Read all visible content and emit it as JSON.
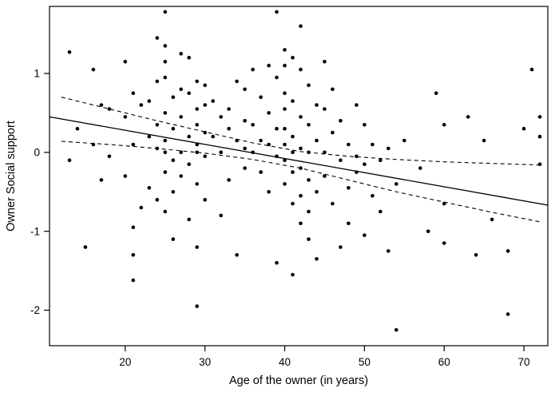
{
  "figure": {
    "background": "#ffffff",
    "foreground": "#000000"
  },
  "chart_data": {
    "type": "scatter",
    "title": "",
    "xlabel": "Age of the owner (in years)",
    "ylabel": "Owner Social support",
    "xlim": [
      10.5,
      73
    ],
    "ylim": [
      -2.45,
      1.85
    ],
    "xticks": [
      20,
      30,
      40,
      50,
      60,
      70
    ],
    "yticks": [
      -2,
      -1,
      0,
      1
    ],
    "grid": false,
    "legend": "none",
    "point_color": "#000000",
    "line_color": "#000000",
    "points": [
      [
        13,
        1.27
      ],
      [
        16,
        1.05
      ],
      [
        17,
        0.6
      ],
      [
        14,
        0.3
      ],
      [
        16,
        0.1
      ],
      [
        13,
        -0.1
      ],
      [
        17,
        -0.35
      ],
      [
        15,
        -1.2
      ],
      [
        18,
        0.55
      ],
      [
        18,
        -0.05
      ],
      [
        20,
        1.15
      ],
      [
        21,
        0.75
      ],
      [
        20,
        0.45
      ],
      [
        22,
        0.6
      ],
      [
        21,
        0.1
      ],
      [
        23,
        0.2
      ],
      [
        20,
        -0.3
      ],
      [
        22,
        -0.7
      ],
      [
        21,
        -0.95
      ],
      [
        21,
        -1.3
      ],
      [
        21,
        -1.62
      ],
      [
        24,
        1.45
      ],
      [
        24,
        0.9
      ],
      [
        23,
        0.65
      ],
      [
        24,
        0.35
      ],
      [
        24,
        0.05
      ],
      [
        23,
        -0.45
      ],
      [
        24,
        -0.6
      ],
      [
        25,
        1.78
      ],
      [
        25,
        1.35
      ],
      [
        25,
        1.15
      ],
      [
        25,
        0.95
      ],
      [
        26,
        0.7
      ],
      [
        25,
        0.5
      ],
      [
        26,
        0.3
      ],
      [
        25,
        0.15
      ],
      [
        25,
        0.0
      ],
      [
        26,
        -0.1
      ],
      [
        25,
        -0.25
      ],
      [
        26,
        -0.5
      ],
      [
        25,
        -0.75
      ],
      [
        26,
        -1.1
      ],
      [
        27,
        1.25
      ],
      [
        27,
        0.8
      ],
      [
        27,
        0.45
      ],
      [
        27,
        0.0
      ],
      [
        27,
        -0.3
      ],
      [
        28,
        1.2
      ],
      [
        29,
        0.9
      ],
      [
        28,
        0.75
      ],
      [
        29,
        0.55
      ],
      [
        29,
        0.35
      ],
      [
        28,
        0.2
      ],
      [
        29,
        0.1
      ],
      [
        29,
        0.0
      ],
      [
        28,
        -0.15
      ],
      [
        29,
        -0.4
      ],
      [
        28,
        -0.85
      ],
      [
        29,
        -1.2
      ],
      [
        29,
        -1.95
      ],
      [
        30,
        0.85
      ],
      [
        30,
        0.6
      ],
      [
        30,
        0.25
      ],
      [
        30,
        -0.05
      ],
      [
        30,
        -0.6
      ],
      [
        31,
        0.65
      ],
      [
        32,
        0.45
      ],
      [
        31,
        0.2
      ],
      [
        32,
        0.0
      ],
      [
        33,
        0.55
      ],
      [
        33,
        0.3
      ],
      [
        34,
        0.9
      ],
      [
        34,
        0.15
      ],
      [
        33,
        -0.35
      ],
      [
        32,
        -0.8
      ],
      [
        34,
        -1.3
      ],
      [
        35,
        0.8
      ],
      [
        35,
        0.4
      ],
      [
        35,
        0.05
      ],
      [
        35,
        -0.2
      ],
      [
        36,
        1.05
      ],
      [
        37,
        0.7
      ],
      [
        36,
        0.35
      ],
      [
        37,
        0.15
      ],
      [
        36,
        0.0
      ],
      [
        37,
        -0.25
      ],
      [
        38,
        1.1
      ],
      [
        38,
        0.5
      ],
      [
        38,
        0.1
      ],
      [
        38,
        -0.5
      ],
      [
        39,
        1.78
      ],
      [
        39,
        0.95
      ],
      [
        39,
        0.3
      ],
      [
        39,
        -0.05
      ],
      [
        39,
        -1.4
      ],
      [
        40,
        1.3
      ],
      [
        40,
        1.1
      ],
      [
        40,
        0.75
      ],
      [
        40,
        0.55
      ],
      [
        40,
        0.3
      ],
      [
        40,
        0.1
      ],
      [
        40,
        -0.1
      ],
      [
        40,
        -0.4
      ],
      [
        41,
        1.2
      ],
      [
        41,
        0.65
      ],
      [
        41,
        0.2
      ],
      [
        41,
        0.0
      ],
      [
        41,
        -0.25
      ],
      [
        41,
        -0.65
      ],
      [
        41,
        -1.55
      ],
      [
        42,
        1.6
      ],
      [
        42,
        1.05
      ],
      [
        42,
        0.45
      ],
      [
        42,
        0.05
      ],
      [
        42,
        -0.2
      ],
      [
        42,
        -0.55
      ],
      [
        42,
        -0.9
      ],
      [
        43,
        0.85
      ],
      [
        43,
        0.35
      ],
      [
        43,
        0.0
      ],
      [
        43,
        -0.35
      ],
      [
        43,
        -0.75
      ],
      [
        43,
        -1.1
      ],
      [
        44,
        0.6
      ],
      [
        44,
        0.15
      ],
      [
        44,
        -0.5
      ],
      [
        44,
        -1.35
      ],
      [
        45,
        1.15
      ],
      [
        45,
        0.55
      ],
      [
        45,
        0.0
      ],
      [
        45,
        -0.3
      ],
      [
        46,
        0.8
      ],
      [
        46,
        0.25
      ],
      [
        46,
        -0.65
      ],
      [
        47,
        0.4
      ],
      [
        47,
        -0.1
      ],
      [
        47,
        -1.2
      ],
      [
        48,
        0.1
      ],
      [
        48,
        -0.45
      ],
      [
        48,
        -0.9
      ],
      [
        49,
        0.6
      ],
      [
        49,
        -0.05
      ],
      [
        49,
        -0.25
      ],
      [
        50,
        0.35
      ],
      [
        50,
        -0.15
      ],
      [
        50,
        -1.05
      ],
      [
        51,
        0.1
      ],
      [
        51,
        -0.55
      ],
      [
        52,
        -0.1
      ],
      [
        52,
        -0.75
      ],
      [
        53,
        0.05
      ],
      [
        53,
        -1.25
      ],
      [
        54,
        -2.25
      ],
      [
        54,
        -0.4
      ],
      [
        55,
        0.15
      ],
      [
        57,
        -0.2
      ],
      [
        58,
        -1.0
      ],
      [
        59,
        0.75
      ],
      [
        60,
        0.35
      ],
      [
        60,
        -0.65
      ],
      [
        60,
        -1.15
      ],
      [
        63,
        0.45
      ],
      [
        64,
        -1.3
      ],
      [
        65,
        0.15
      ],
      [
        66,
        -0.85
      ],
      [
        68,
        -2.05
      ],
      [
        68,
        -1.25
      ],
      [
        70,
        0.3
      ],
      [
        71,
        1.05
      ],
      [
        72,
        0.45
      ],
      [
        72,
        0.2
      ],
      [
        72,
        -0.15
      ]
    ],
    "regression_line": {
      "style": "solid",
      "intercept": 0.638,
      "slope": -0.0179,
      "x_start": 10.5,
      "x_end": 73
    },
    "ci_upper": [
      [
        12,
        0.7
      ],
      [
        18,
        0.55
      ],
      [
        24,
        0.4
      ],
      [
        30,
        0.26
      ],
      [
        36,
        0.12
      ],
      [
        42,
        0.01
      ],
      [
        48,
        -0.05
      ],
      [
        54,
        -0.09
      ],
      [
        60,
        -0.12
      ],
      [
        66,
        -0.14
      ],
      [
        72,
        -0.16
      ]
    ],
    "ci_lower": [
      [
        12,
        0.14
      ],
      [
        18,
        0.1
      ],
      [
        24,
        0.05
      ],
      [
        30,
        -0.01
      ],
      [
        36,
        -0.09
      ],
      [
        42,
        -0.2
      ],
      [
        48,
        -0.35
      ],
      [
        54,
        -0.5
      ],
      [
        60,
        -0.63
      ],
      [
        66,
        -0.76
      ],
      [
        72,
        -0.88
      ]
    ]
  }
}
